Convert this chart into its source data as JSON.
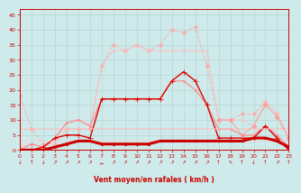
{
  "xlabel": "Vent moyen/en rafales ( km/h )",
  "xlim": [
    0,
    23
  ],
  "ylim": [
    0,
    47
  ],
  "yticks": [
    0,
    5,
    10,
    15,
    20,
    25,
    30,
    35,
    40,
    45
  ],
  "xticks": [
    0,
    1,
    2,
    3,
    4,
    5,
    6,
    7,
    8,
    9,
    10,
    11,
    12,
    13,
    14,
    15,
    16,
    17,
    18,
    19,
    20,
    21,
    22,
    23
  ],
  "bg_color": "#ceeaea",
  "grid_color": "#aacccc",
  "lines": [
    {
      "comment": "very light pink dotted - highest peaks, rafales top line",
      "x": [
        0,
        1,
        2,
        3,
        4,
        5,
        6,
        7,
        8,
        9,
        10,
        11,
        12,
        13,
        14,
        15,
        16,
        17,
        18,
        19,
        20,
        21,
        22,
        23
      ],
      "y": [
        18,
        7,
        2,
        2,
        7,
        7,
        7,
        28,
        35,
        33,
        35,
        33,
        35,
        40,
        39,
        41,
        28,
        10,
        10,
        12,
        12,
        16,
        12,
        4
      ],
      "color": "#ffaaaa",
      "lw": 0.8,
      "ls": "--",
      "marker": "D",
      "ms": 2.5,
      "alpha": 0.75
    },
    {
      "comment": "light pink with small dots - second high line",
      "x": [
        0,
        1,
        2,
        3,
        4,
        5,
        6,
        7,
        8,
        9,
        10,
        11,
        12,
        13,
        14,
        15,
        16,
        17,
        18,
        19,
        20,
        21,
        22,
        23
      ],
      "y": [
        1,
        2,
        1,
        3,
        9,
        10,
        8,
        28,
        33,
        33,
        35,
        33,
        33,
        33,
        33,
        33,
        33,
        10,
        10,
        10,
        8,
        16,
        12,
        4
      ],
      "color": "#ffbbbb",
      "lw": 0.8,
      "ls": "-",
      "marker": ".",
      "ms": 3,
      "alpha": 0.7
    },
    {
      "comment": "medium pink with dots - mid line rising",
      "x": [
        0,
        1,
        2,
        3,
        4,
        5,
        6,
        7,
        8,
        9,
        10,
        11,
        12,
        13,
        14,
        15,
        16,
        17,
        18,
        19,
        20,
        21,
        22,
        23
      ],
      "y": [
        0,
        2,
        1,
        4,
        9,
        10,
        8,
        17,
        17,
        17,
        17,
        17,
        17,
        23,
        23,
        20,
        15,
        7,
        7,
        5,
        5,
        8,
        5,
        1
      ],
      "color": "#ff8888",
      "lw": 1.0,
      "ls": "-",
      "marker": ".",
      "ms": 3,
      "alpha": 0.85
    },
    {
      "comment": "dark red with + markers - main wind line",
      "x": [
        0,
        1,
        2,
        3,
        4,
        5,
        6,
        7,
        8,
        9,
        10,
        11,
        12,
        13,
        14,
        15,
        16,
        17,
        18,
        19,
        20,
        21,
        22,
        23
      ],
      "y": [
        0,
        0,
        1,
        4,
        5,
        5,
        4,
        17,
        17,
        17,
        17,
        17,
        17,
        23,
        26,
        23,
        15,
        4,
        4,
        4,
        4,
        8,
        4,
        0
      ],
      "color": "#dd0000",
      "lw": 1.0,
      "ls": "-",
      "marker": "+",
      "ms": 4,
      "alpha": 1.0
    },
    {
      "comment": "flat light pink line ~7",
      "x": [
        0,
        1,
        2,
        3,
        4,
        5,
        6,
        7,
        8,
        9,
        10,
        11,
        12,
        13,
        14,
        15,
        16,
        17,
        18,
        19,
        20,
        21,
        22,
        23
      ],
      "y": [
        7,
        7,
        7,
        7,
        7,
        7,
        7,
        7,
        7,
        7,
        7,
        7,
        7,
        7,
        7,
        7,
        7,
        7,
        7,
        7,
        7,
        7,
        7,
        7
      ],
      "color": "#ffbbbb",
      "lw": 1.2,
      "ls": "-",
      "marker": null,
      "ms": 0,
      "alpha": 0.65
    },
    {
      "comment": "flat very light pink line ~3",
      "x": [
        0,
        1,
        2,
        3,
        4,
        5,
        6,
        7,
        8,
        9,
        10,
        11,
        12,
        13,
        14,
        15,
        16,
        17,
        18,
        19,
        20,
        21,
        22,
        23
      ],
      "y": [
        3,
        3,
        3,
        3,
        3,
        3,
        3,
        3,
        3,
        3,
        3,
        3,
        3,
        3,
        3,
        3,
        3,
        3,
        3,
        3,
        3,
        3,
        3,
        3
      ],
      "color": "#ffcccc",
      "lw": 1.0,
      "ls": "-",
      "marker": null,
      "ms": 0,
      "alpha": 0.6
    },
    {
      "comment": "dark red thick baseline near 0-4 with square markers",
      "x": [
        0,
        1,
        2,
        3,
        4,
        5,
        6,
        7,
        8,
        9,
        10,
        11,
        12,
        13,
        14,
        15,
        16,
        17,
        18,
        19,
        20,
        21,
        22,
        23
      ],
      "y": [
        0,
        0,
        0,
        1,
        2,
        3,
        3,
        2,
        2,
        2,
        2,
        2,
        3,
        3,
        3,
        3,
        3,
        3,
        3,
        3,
        4,
        4,
        3,
        1
      ],
      "color": "#cc0000",
      "lw": 2.2,
      "ls": "-",
      "marker": "s",
      "ms": 2,
      "alpha": 1.0
    },
    {
      "comment": "right side spiky pink line peaking at ~15 around x=21",
      "x": [
        17,
        18,
        19,
        20,
        21,
        22,
        23
      ],
      "y": [
        10,
        10,
        5,
        8,
        15,
        11,
        4
      ],
      "color": "#ff9999",
      "lw": 0.8,
      "ls": "-",
      "marker": "D",
      "ms": 2.5,
      "alpha": 0.8
    }
  ],
  "wind_arrows": [
    "↓",
    "↑",
    "↓",
    "↗",
    "↗",
    "↗",
    "↗",
    "←",
    "↗",
    "↗",
    "↗",
    "↗",
    "↗",
    "↗",
    "↗",
    "↗",
    "↗",
    "↑",
    "↖",
    "↑",
    "↓",
    "↑",
    "↗",
    "↑"
  ]
}
